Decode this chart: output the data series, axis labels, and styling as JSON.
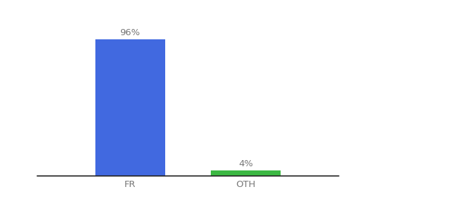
{
  "categories": [
    "FR",
    "OTH"
  ],
  "values": [
    96,
    4
  ],
  "bar_colors": [
    "#4169e0",
    "#3cb843"
  ],
  "bar_labels": [
    "96%",
    "4%"
  ],
  "xlim": [
    -0.8,
    1.8
  ],
  "ylim": [
    0,
    112
  ],
  "background_color": "#ffffff",
  "label_fontsize": 9.5,
  "tick_fontsize": 9.5,
  "bar_width": 0.6
}
